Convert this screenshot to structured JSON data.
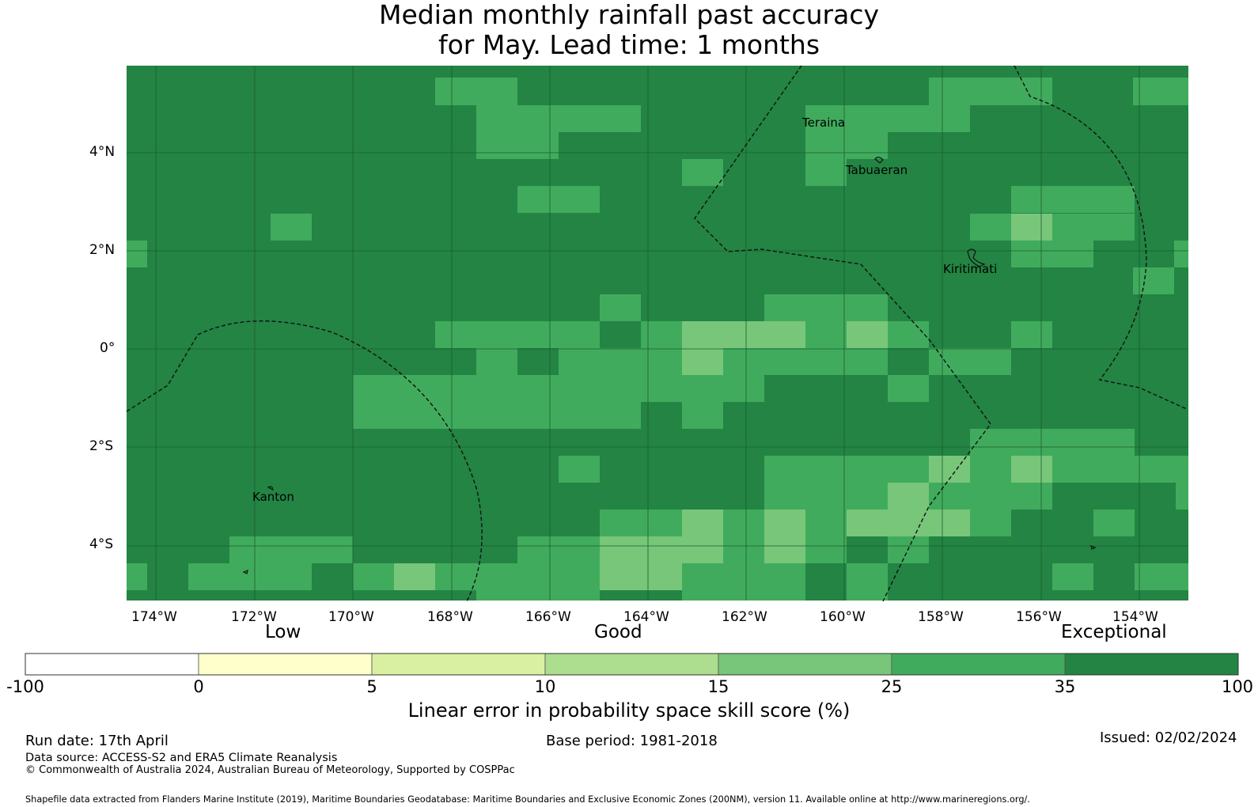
{
  "title_line1": "Median monthly rainfall past accuracy",
  "title_line2": "for May. Lead time: 1 months",
  "map": {
    "lon_labels": [
      "174°W",
      "172°W",
      "170°W",
      "168°W",
      "166°W",
      "164°W",
      "162°W",
      "160°W",
      "158°W",
      "156°W",
      "154°W"
    ],
    "lat_labels": [
      "4°N",
      "2°N",
      "0°",
      "2°S",
      "4°S"
    ],
    "places": [
      "Teraina",
      "Tabuaeran",
      "Kiritimati",
      "Kanton"
    ]
  },
  "legend": {
    "categories": [
      "Low",
      "Good",
      "Exceptional"
    ],
    "ticks": [
      "-100",
      "0",
      "5",
      "10",
      "15",
      "25",
      "35",
      "100"
    ],
    "colors": [
      "#ffffff",
      "#ffffcc",
      "#d9f0a3",
      "#addd8e",
      "#78c679",
      "#41ab5d",
      "#238443"
    ],
    "title": "Linear error in probability space skill score (%)"
  },
  "footer": {
    "run_date": "Run date: 17th April",
    "base_period": "Base period: 1981-2018",
    "issued": "Issued: 02/02/2024",
    "data_source": "Data source: ACCESS-S2 and ERA5 Climate Reanalysis",
    "copyright": "© Commonwealth of Australia 2024, Australian Bureau of Meteorology, Supported by COSPPac",
    "shapefile": "Shapefile data extracted from Flanders Marine Institute (2019), Maritime Boundaries Geodatabase: Maritime Boundaries and Exclusive Economic Zones (200NM), version 11. Available online at http://www.marineregions.org/."
  }
}
